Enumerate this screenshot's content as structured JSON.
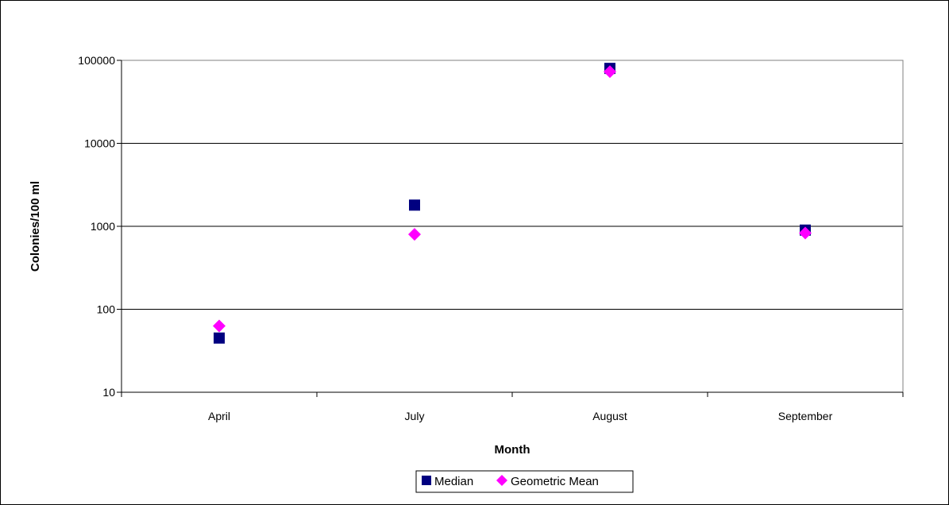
{
  "chart_data": {
    "type": "scatter",
    "xlabel": "Month",
    "ylabel": "Colonies/100 ml",
    "y_scale": "log",
    "ylim": [
      10,
      100000
    ],
    "y_ticks": [
      "10",
      "100",
      "1000",
      "10000",
      "100000"
    ],
    "y_tick_values": [
      10,
      100,
      1000,
      10000,
      100000
    ],
    "categories": [
      "April",
      "July",
      "August",
      "September"
    ],
    "grid": "horizontal major gridlines",
    "legend_position": "bottom",
    "series": [
      {
        "name": "Median",
        "marker": "square",
        "color": "#000080",
        "values": [
          45,
          1800,
          80000,
          900
        ]
      },
      {
        "name": "Geometric Mean",
        "marker": "diamond",
        "color": "#ff00ff",
        "values": [
          63,
          800,
          73000,
          830
        ]
      }
    ]
  }
}
